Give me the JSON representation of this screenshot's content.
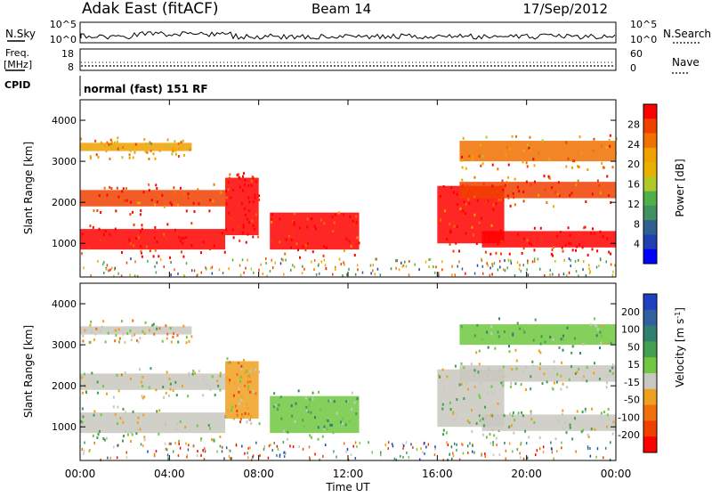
{
  "header": {
    "station": "Adak East (fitACF)",
    "beam": "Beam 14",
    "date": "17/Sep/2012"
  },
  "noise_panel": {
    "left_label": "N.Sky",
    "left_ticks": [
      "10^5",
      "10^0"
    ],
    "right_label": "N.Search",
    "right_ticks": [
      "10^5",
      "10^0"
    ]
  },
  "freq_panel": {
    "left_label_1": "Freq.",
    "left_label_2": "[MHz]",
    "left_ticks": [
      "18",
      "8"
    ],
    "right_label": "Nave",
    "right_ticks": [
      "60",
      "0"
    ],
    "cpid_label": "CPID"
  },
  "cpid_text": "normal (fast) 151 RF",
  "x_axis": {
    "title": "Time UT",
    "ticks": [
      "00:00",
      "04:00",
      "08:00",
      "12:00",
      "16:00",
      "20:00",
      "00:00"
    ]
  },
  "power_colorbar": {
    "title": "Power [dB]",
    "ticks": [
      "28",
      "24",
      "20",
      "16",
      "12",
      "8",
      "4"
    ],
    "colors": [
      "#ff0000",
      "#f04000",
      "#f07000",
      "#f0a000",
      "#e8b000",
      "#b0c828",
      "#50b048",
      "#409060",
      "#306090",
      "#2040b0",
      "#0000ff"
    ]
  },
  "velocity_colorbar": {
    "title": "Velocity [m s",
    "title_sup": "-1",
    "title_end": "]",
    "ticks": [
      "200",
      "100",
      "50",
      "15",
      "-15",
      "-50",
      "-100",
      "-200"
    ],
    "colors": [
      "#2040c0",
      "#3060a0",
      "#308070",
      "#40a050",
      "#70c840",
      "#c8c8c0",
      "#f0a020",
      "#f07010",
      "#f04000",
      "#ff0000"
    ]
  },
  "chart_data": [
    {
      "type": "heatmap",
      "title": "Power",
      "xlabel": "Time UT",
      "ylabel": "Slant Range [km]",
      "xlim": [
        0,
        24
      ],
      "ylim": [
        180,
        4500
      ],
      "x_ticks": [
        "00:00",
        "04:00",
        "08:00",
        "12:00",
        "16:00",
        "20:00",
        "00:00"
      ],
      "y_ticks": [
        1000,
        2000,
        3000,
        4000
      ],
      "colorbar": {
        "label": "Power [dB]",
        "range": [
          0,
          30
        ]
      },
      "bands": [
        {
          "t0": 0.0,
          "t1": 6.5,
          "r0": 850,
          "r1": 1350,
          "value": 30
        },
        {
          "t0": 0.0,
          "t1": 6.5,
          "r0": 1900,
          "r1": 2300,
          "value": 27
        },
        {
          "t0": 0.0,
          "t1": 5.0,
          "r0": 3250,
          "r1": 3450,
          "value": 20
        },
        {
          "t0": 6.5,
          "t1": 8.0,
          "r0": 1200,
          "r1": 2600,
          "value": 29
        },
        {
          "t0": 8.5,
          "t1": 12.5,
          "r0": 850,
          "r1": 1750,
          "value": 28
        },
        {
          "t0": 16.0,
          "t1": 19.0,
          "r0": 1000,
          "r1": 2400,
          "value": 28
        },
        {
          "t0": 18.0,
          "t1": 24.0,
          "r0": 900,
          "r1": 1300,
          "value": 30
        },
        {
          "t0": 17.0,
          "t1": 24.0,
          "r0": 2100,
          "r1": 2500,
          "value": 25
        },
        {
          "t0": 17.0,
          "t1": 24.0,
          "r0": 3000,
          "r1": 3500,
          "value": 22
        }
      ]
    },
    {
      "type": "heatmap",
      "title": "Velocity",
      "xlabel": "Time UT",
      "ylabel": "Slant Range [km]",
      "xlim": [
        0,
        24
      ],
      "ylim": [
        180,
        4500
      ],
      "x_ticks": [
        "00:00",
        "04:00",
        "08:00",
        "12:00",
        "16:00",
        "20:00",
        "00:00"
      ],
      "y_ticks": [
        1000,
        2000,
        3000,
        4000
      ],
      "colorbar": {
        "label": "Velocity [m s-1]",
        "range": [
          -200,
          200
        ]
      },
      "bands": [
        {
          "t0": 0.0,
          "t1": 6.5,
          "r0": 850,
          "r1": 1350,
          "value": 0
        },
        {
          "t0": 0.0,
          "t1": 6.5,
          "r0": 1900,
          "r1": 2300,
          "value": -20
        },
        {
          "t0": 0.0,
          "t1": 5.0,
          "r0": 3250,
          "r1": 3450,
          "value": -30
        },
        {
          "t0": 6.5,
          "t1": 8.0,
          "r0": 1200,
          "r1": 2600,
          "value": -60
        },
        {
          "t0": 8.5,
          "t1": 12.5,
          "r0": 850,
          "r1": 1750,
          "value": 40
        },
        {
          "t0": 16.0,
          "t1": 19.0,
          "r0": 1000,
          "r1": 2400,
          "value": 0
        },
        {
          "t0": 18.0,
          "t1": 24.0,
          "r0": 900,
          "r1": 1300,
          "value": 0
        },
        {
          "t0": 17.0,
          "t1": 24.0,
          "r0": 2100,
          "r1": 2500,
          "value": 0
        },
        {
          "t0": 17.0,
          "t1": 24.0,
          "r0": 3000,
          "r1": 3500,
          "value": 30
        }
      ]
    }
  ]
}
